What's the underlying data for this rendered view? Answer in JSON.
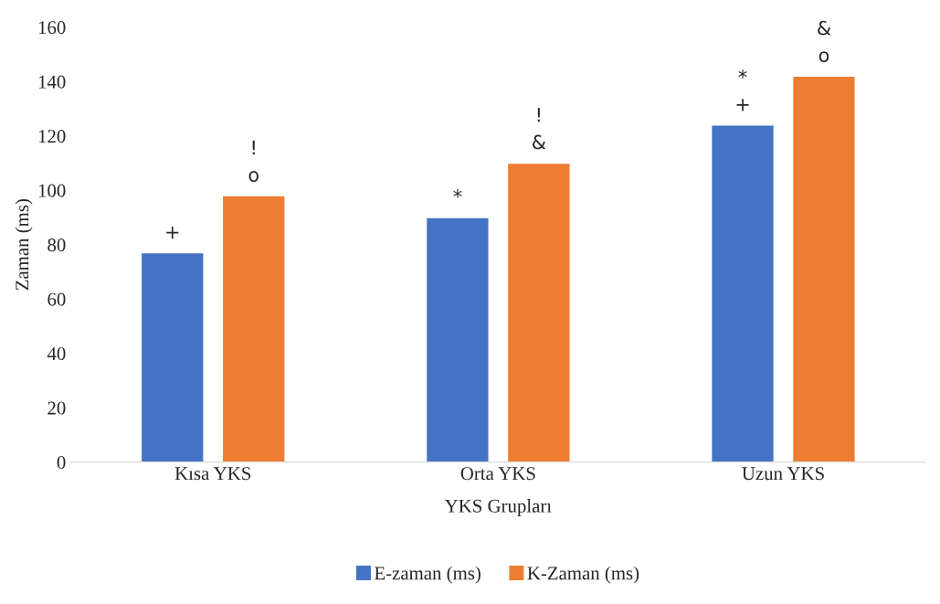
{
  "chart_data": {
    "type": "bar",
    "xlabel": "YKS Grupları",
    "ylabel": "Zaman (ms)",
    "categories": [
      "Kısa YKS",
      "Orta YKS",
      "Uzun YKS"
    ],
    "series": [
      {
        "name": "E-zaman (ms)",
        "color": "#4472c4",
        "values": [
          77,
          90,
          124
        ]
      },
      {
        "name": "K-Zaman (ms)",
        "color": "#ed7d31",
        "values": [
          98,
          110,
          142
        ]
      }
    ],
    "annotations": [
      "+",
      "!\no",
      "*",
      "!\n&",
      "*\n+",
      "&\no"
    ],
    "ylim": [
      0,
      160
    ],
    "yticks": [
      0,
      20,
      40,
      60,
      80,
      100,
      120,
      140,
      160
    ],
    "grid": false,
    "legend": "bottom"
  }
}
